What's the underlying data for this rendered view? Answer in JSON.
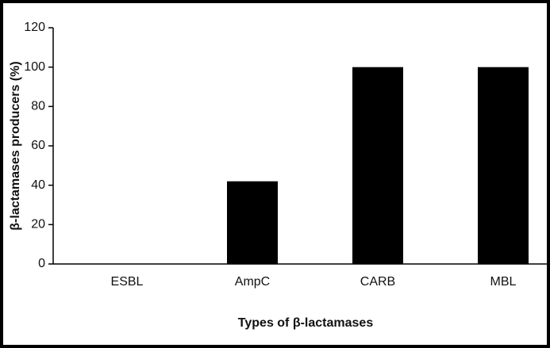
{
  "chart_data": {
    "type": "bar",
    "categories": [
      "ESBL",
      "AmpC",
      "CARB",
      "MBL"
    ],
    "values": [
      0,
      42,
      100,
      100
    ],
    "color": "#000000",
    "ylim": [
      0,
      120
    ],
    "yticks": [
      0,
      20,
      40,
      60,
      80,
      100,
      120
    ],
    "x_label": "Types of β-lactamases",
    "y_label": "β-lactamases producers (%)",
    "grid": false
  }
}
